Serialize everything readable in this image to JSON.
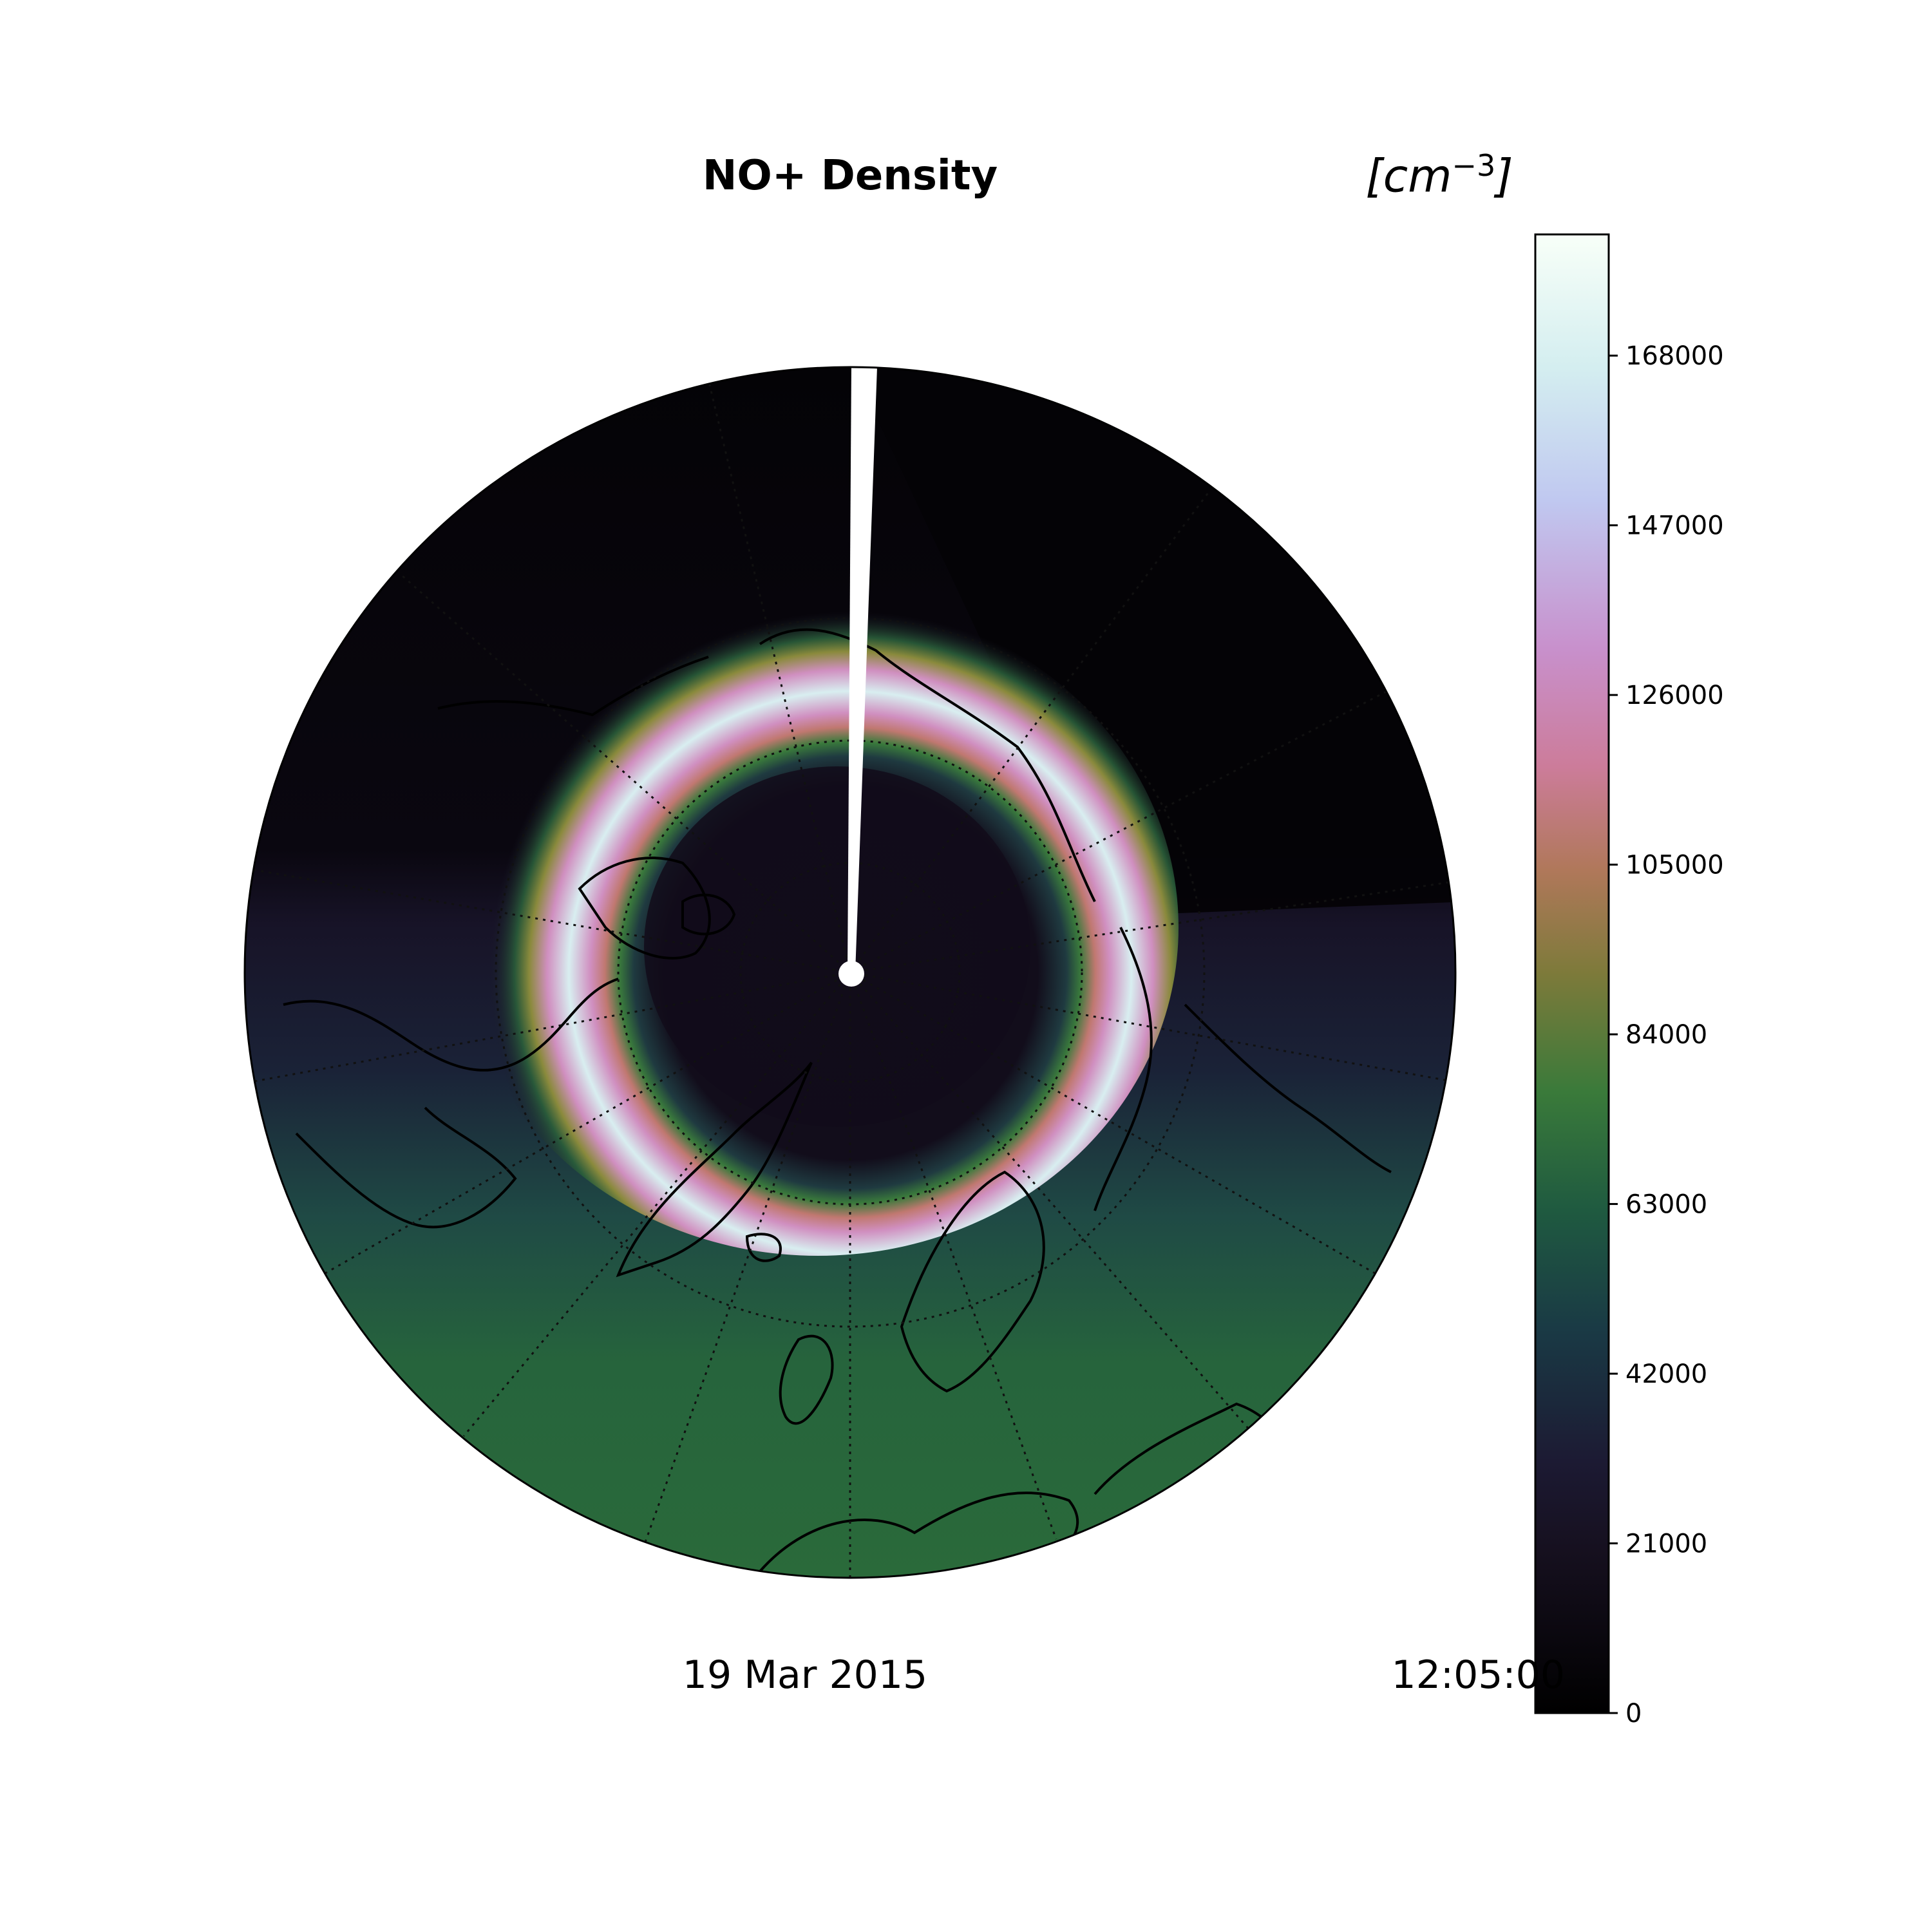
{
  "title": "NO+ Density",
  "units": {
    "base": "[cm",
    "exponent": "−3",
    "close": "]"
  },
  "date": "19 Mar 2015",
  "time": "12:05:00",
  "colorbar": {
    "ticks": [
      "0",
      "21000",
      "42000",
      "63000",
      "84000",
      "105000",
      "126000",
      "147000",
      "168000"
    ],
    "min": 0,
    "max": 183000,
    "colors": [
      "#000000",
      "#1c1a33",
      "#1f4a45",
      "#2a6a3a",
      "#7d7a3a",
      "#c07870",
      "#d08fc0",
      "#c0c8f0",
      "#f5fffa"
    ]
  },
  "map": {
    "projection": "north-polar-stereographic",
    "background_density": "~55000 low latitudes, ~15000 polar cap",
    "auroral_ring_peak": "~170000",
    "gridlines": "dotted"
  }
}
